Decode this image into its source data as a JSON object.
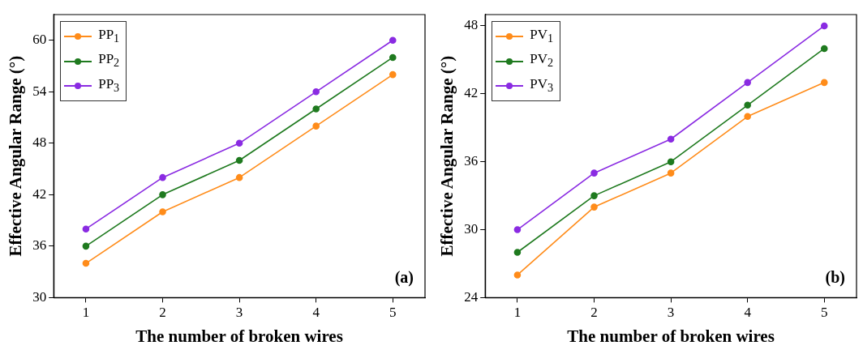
{
  "chart_data": [
    {
      "type": "line",
      "xlabel": "The number of broken wires",
      "ylabel": "Effective Angular Range (°)",
      "x": [
        1,
        2,
        3,
        4,
        5
      ],
      "xlim": [
        0.58,
        5.42
      ],
      "xticks": [
        1,
        2,
        3,
        4,
        5
      ],
      "ylim": [
        30,
        63
      ],
      "yticks": [
        30,
        36,
        42,
        48,
        54,
        60
      ],
      "grid": false,
      "legend": "top left",
      "marker": "circle",
      "line_style": "solid",
      "annotations": [
        "(a)"
      ],
      "series": [
        {
          "name": "PP$_{1}$",
          "color": "#ff8c1a",
          "values": [
            34,
            40,
            44,
            50,
            56
          ]
        },
        {
          "name": "PP$_{2}$",
          "color": "#1f7a1f",
          "values": [
            36,
            42,
            46,
            52,
            58
          ]
        },
        {
          "name": "PP$_{3}$",
          "color": "#8a2be2",
          "values": [
            38,
            44,
            48,
            54,
            60
          ]
        }
      ]
    },
    {
      "type": "line",
      "xlabel": "The number of broken wires",
      "ylabel": "Effective Angular Range (°)",
      "x": [
        1,
        2,
        3,
        4,
        5
      ],
      "xlim": [
        0.58,
        5.42
      ],
      "xticks": [
        1,
        2,
        3,
        4,
        5
      ],
      "ylim": [
        24,
        49
      ],
      "yticks": [
        24,
        30,
        36,
        42,
        48
      ],
      "grid": false,
      "legend": "top left",
      "marker": "circle",
      "line_style": "solid",
      "annotations": [
        "(b)"
      ],
      "series": [
        {
          "name": "PV$_{1}$",
          "color": "#ff8c1a",
          "values": [
            26,
            32,
            35,
            40,
            43
          ]
        },
        {
          "name": "PV$_{2}$",
          "color": "#1f7a1f",
          "values": [
            28,
            33,
            36,
            41,
            46
          ]
        },
        {
          "name": "PV$_{3}$",
          "color": "#8a2be2",
          "values": [
            30,
            35,
            38,
            43,
            48
          ]
        }
      ]
    }
  ]
}
